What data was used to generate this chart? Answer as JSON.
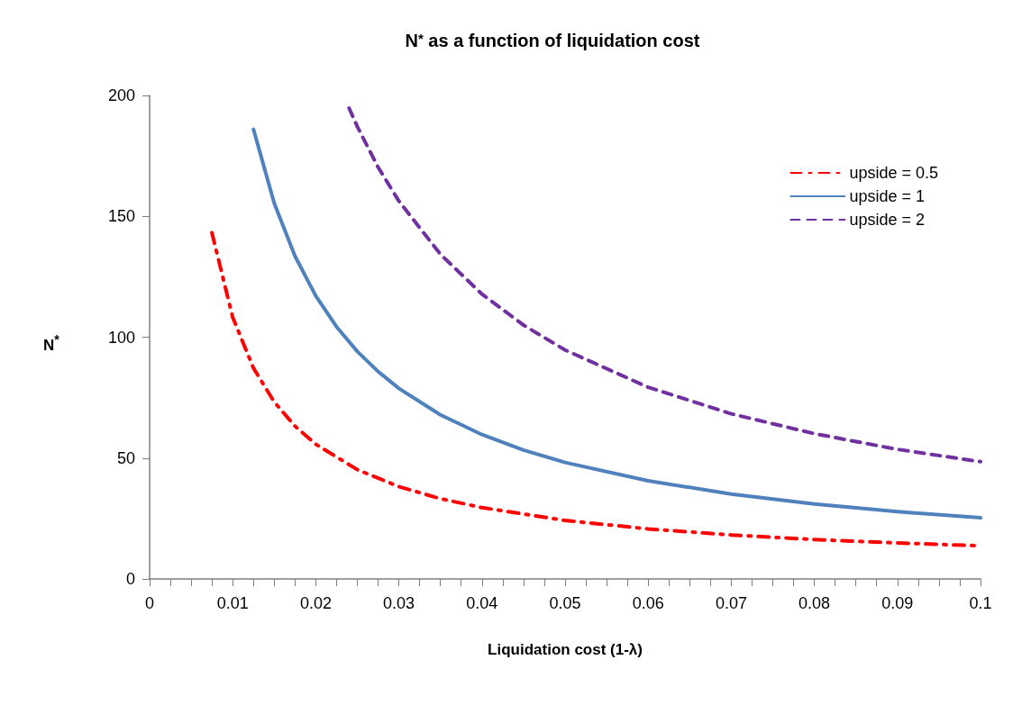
{
  "chart_data": {
    "type": "line",
    "title": "N$^{*}$ as a function of liquidation cost",
    "xlabel": "Liquidation cost (1-λ)",
    "ylabel": "N$^{*}$",
    "xlim": [
      0,
      0.1
    ],
    "ylim": [
      0,
      200
    ],
    "xticks": [
      0,
      {
        "value": 0.0025,
        "label": null
      },
      {
        "value": 0.005,
        "label": null
      },
      {
        "value": 0.0075,
        "label": null
      },
      0.01,
      {
        "value": 0.0125,
        "label": null
      },
      {
        "value": 0.015,
        "label": null
      },
      {
        "value": 0.0175,
        "label": null
      },
      0.02,
      {
        "value": 0.0225,
        "label": null
      },
      {
        "value": 0.025,
        "label": null
      },
      {
        "value": 0.0275,
        "label": null
      },
      0.03,
      {
        "value": 0.0325,
        "label": null
      },
      {
        "value": 0.035,
        "label": null
      },
      {
        "value": 0.0375,
        "label": null
      },
      0.04,
      {
        "value": 0.0425,
        "label": null
      },
      {
        "value": 0.045,
        "label": null
      },
      {
        "value": 0.0475,
        "label": null
      },
      0.05,
      {
        "value": 0.0525,
        "label": null
      },
      {
        "value": 0.055,
        "label": null
      },
      {
        "value": 0.0575,
        "label": null
      },
      0.06,
      {
        "value": 0.0625,
        "label": null
      },
      {
        "value": 0.065,
        "label": null
      },
      {
        "value": 0.0675,
        "label": null
      },
      0.07,
      {
        "value": 0.0725,
        "label": null
      },
      {
        "value": 0.075,
        "label": null
      },
      {
        "value": 0.0775,
        "label": null
      },
      0.08,
      {
        "value": 0.0825,
        "label": null
      },
      {
        "value": 0.085,
        "label": null
      },
      {
        "value": 0.0875,
        "label": null
      },
      0.09,
      {
        "value": 0.0925,
        "label": null
      },
      {
        "value": 0.095,
        "label": null
      },
      {
        "value": 0.0975,
        "label": null
      },
      0.1
    ],
    "yticks": [
      0,
      50,
      100,
      150,
      200
    ],
    "grid": false,
    "legend": "top right",
    "marker": "none",
    "series": [
      {
        "name": "upside = 0.5",
        "color": "#ff0000",
        "line_style": "dashdot",
        "x": [
          0.0075,
          0.01,
          0.0125,
          0.015,
          0.0175,
          0.02,
          0.025,
          0.03,
          0.035,
          0.04,
          0.05,
          0.06,
          0.07,
          0.08,
          0.09,
          0.1
        ],
        "values": [
          143.2,
          108.2,
          87.2,
          73.2,
          63.2,
          55.7,
          45.2,
          38.2,
          33.2,
          29.5,
          24.2,
          20.7,
          18.2,
          16.3,
          14.9,
          13.7
        ]
      },
      {
        "name": "upside = 1",
        "color": "#4f81bd",
        "line_style": "solid",
        "x": [
          0.0125,
          0.015,
          0.0175,
          0.02,
          0.0225,
          0.025,
          0.0275,
          0.03,
          0.035,
          0.04,
          0.045,
          0.05,
          0.06,
          0.07,
          0.08,
          0.09,
          0.1
        ],
        "values": [
          186,
          155.4,
          133.5,
          117.1,
          104.3,
          94.1,
          85.8,
          78.8,
          67.9,
          59.7,
          53.3,
          48.2,
          40.6,
          35.1,
          31.0,
          27.8,
          25.3
        ]
      },
      {
        "name": "upside = 2",
        "color": "#7030a0",
        "line_style": "dashed",
        "x": [
          0.024,
          0.025,
          0.0275,
          0.03,
          0.035,
          0.04,
          0.045,
          0.05,
          0.06,
          0.07,
          0.08,
          0.09,
          0.1
        ],
        "values": [
          194.8,
          187.1,
          170.3,
          156.3,
          134.3,
          117.8,
          105,
          94.7,
          79.3,
          68.3,
          60.1,
          53.6,
          48.5
        ]
      }
    ]
  }
}
